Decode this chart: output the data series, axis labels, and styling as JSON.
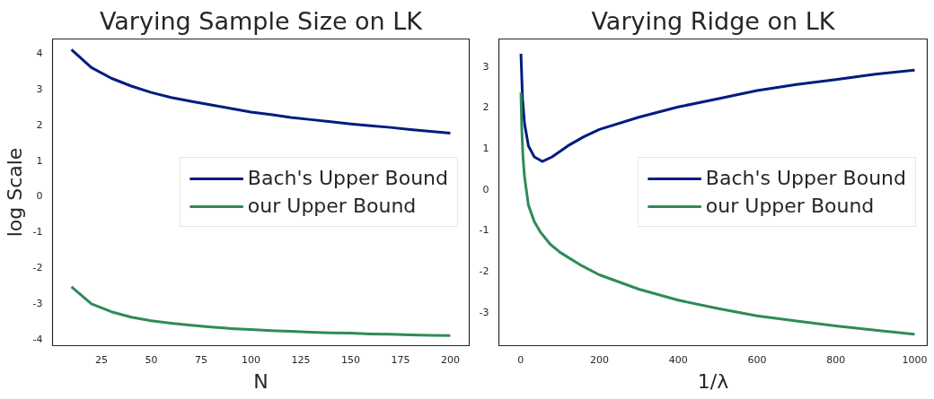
{
  "chart_data": [
    {
      "type": "line",
      "title": "Varying Sample Size on LK",
      "xlabel": "N",
      "ylabel": "log Scale",
      "x": [
        10,
        20,
        30,
        40,
        50,
        60,
        70,
        80,
        90,
        100,
        110,
        120,
        130,
        140,
        150,
        160,
        170,
        180,
        190,
        200
      ],
      "series": [
        {
          "name": "Bach's Upper Bound",
          "color": "#001c7f",
          "values": [
            4.1,
            3.6,
            3.3,
            3.08,
            2.9,
            2.76,
            2.65,
            2.55,
            2.45,
            2.35,
            2.28,
            2.2,
            2.14,
            2.08,
            2.02,
            1.97,
            1.92,
            1.86,
            1.81,
            1.76
          ]
        },
        {
          "name": "our Upper Bound",
          "color": "#2e8b57",
          "values": [
            -2.55,
            -3.03,
            -3.25,
            -3.4,
            -3.5,
            -3.57,
            -3.63,
            -3.68,
            -3.72,
            -3.75,
            -3.78,
            -3.8,
            -3.82,
            -3.84,
            -3.85,
            -3.87,
            -3.88,
            -3.9,
            -3.91,
            -3.92
          ]
        }
      ],
      "xlim": [
        0.5,
        209.5
      ],
      "ylim": [
        -4.2,
        4.4
      ],
      "xticks": [
        25,
        50,
        75,
        100,
        125,
        150,
        175,
        200
      ],
      "yticks": [
        -4,
        -3,
        -2,
        -1,
        0,
        1,
        2,
        3,
        4
      ],
      "legend": "right",
      "grid": false,
      "marker": "none",
      "line_style": "solid"
    },
    {
      "type": "line",
      "title": "Varying Ridge on LK",
      "xlabel": "1/λ",
      "series": [
        {
          "name": "Bach's Upper Bound",
          "color": "#001c7f",
          "x": [
            1,
            5,
            10,
            20,
            35,
            55,
            80,
            120,
            160,
            200,
            300,
            400,
            500,
            600,
            700,
            800,
            900,
            1000
          ],
          "values": [
            3.3,
            2.2,
            1.6,
            1.05,
            0.78,
            0.67,
            0.78,
            1.05,
            1.27,
            1.45,
            1.75,
            2.0,
            2.2,
            2.4,
            2.55,
            2.67,
            2.8,
            2.9
          ]
        },
        {
          "name": "our Upper Bound",
          "color": "#2e8b57",
          "x": [
            1,
            3,
            6,
            10,
            20,
            35,
            50,
            75,
            100,
            150,
            200,
            300,
            400,
            500,
            600,
            700,
            800,
            900,
            1000
          ],
          "values": [
            2.35,
            1.5,
            0.8,
            0.3,
            -0.4,
            -0.8,
            -1.05,
            -1.35,
            -1.55,
            -1.85,
            -2.1,
            -2.45,
            -2.72,
            -2.92,
            -3.1,
            -3.23,
            -3.35,
            -3.45,
            -3.55
          ]
        }
      ],
      "xlim": [
        -55,
        1032
      ],
      "ylim": [
        -3.83,
        3.66
      ],
      "xticks": [
        0,
        200,
        400,
        600,
        800,
        1000
      ],
      "yticks": [
        -3,
        -2,
        -1,
        0,
        1,
        2,
        3
      ],
      "legend": "right",
      "grid": false,
      "marker": "none",
      "line_style": "solid"
    }
  ]
}
